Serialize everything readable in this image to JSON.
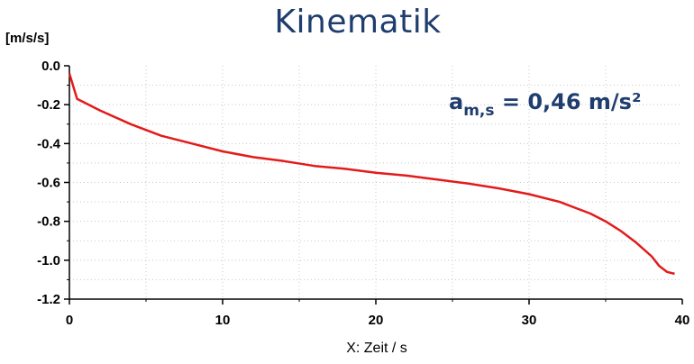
{
  "title": "Kinematik",
  "chart_data": {
    "type": "line",
    "ylabel": "[m/s/s]",
    "xlabel": "X: Zeit / s",
    "xlim": [
      0,
      40
    ],
    "ylim": [
      -1.2,
      0.0
    ],
    "xticks": [
      "0",
      "10",
      "20",
      "30",
      "40"
    ],
    "yticks": [
      "0.0",
      "-0.2",
      "-0.4",
      "-0.6",
      "-0.8",
      "-1.0",
      "-1.2"
    ],
    "grid": true,
    "line_color": "#e31b1b",
    "annotation": {
      "base": "a",
      "subscript": "m,s",
      "text": " = 0,46 m/s²"
    },
    "series": [
      {
        "x": [
          0,
          0.5,
          1,
          2,
          4,
          6,
          8,
          10,
          12,
          14,
          16,
          18,
          20,
          22,
          24,
          26,
          28,
          30,
          32,
          34,
          35,
          36,
          37,
          38,
          38.5,
          39,
          39.5
        ],
        "y": [
          -0.04,
          -0.17,
          -0.19,
          -0.23,
          -0.3,
          -0.36,
          -0.4,
          -0.44,
          -0.47,
          -0.49,
          -0.515,
          -0.53,
          -0.55,
          -0.565,
          -0.585,
          -0.605,
          -0.63,
          -0.66,
          -0.7,
          -0.76,
          -0.8,
          -0.85,
          -0.91,
          -0.98,
          -1.03,
          -1.06,
          -1.07
        ]
      }
    ]
  }
}
